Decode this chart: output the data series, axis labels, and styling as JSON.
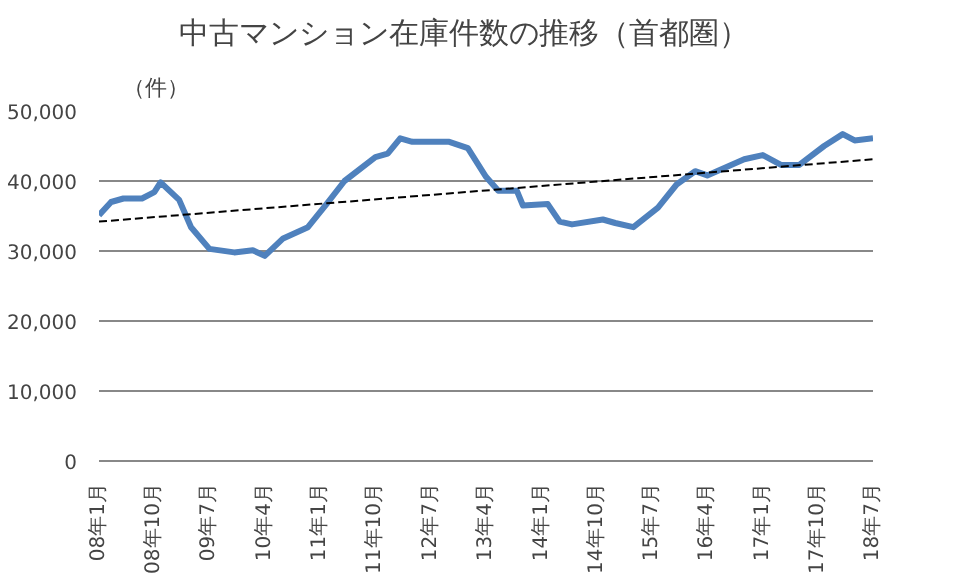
{
  "chart_data": {
    "type": "line",
    "title": "中古マンション在庫件数の推移（首都圏）",
    "ylabel": "（件）",
    "series": [
      {
        "color": "#4f81bd",
        "line_style": "solid",
        "x": [
          "2008-01",
          "2008-03",
          "2008-05",
          "2008-08",
          "2008-10",
          "2008-11",
          "2009-02",
          "2009-04",
          "2009-07",
          "2009-11",
          "2010-02",
          "2010-04",
          "2010-07",
          "2010-11",
          "2011-02",
          "2011-05",
          "2011-10",
          "2011-12",
          "2012-02",
          "2012-04",
          "2012-10",
          "2013-01",
          "2013-04",
          "2013-06",
          "2013-09",
          "2013-10",
          "2014-02",
          "2014-04",
          "2014-06",
          "2014-11",
          "2015-01",
          "2015-04",
          "2015-08",
          "2015-11",
          "2016-02",
          "2016-04",
          "2016-10",
          "2017-01",
          "2017-04",
          "2017-07",
          "2017-11",
          "2018-02",
          "2018-04",
          "2018-07"
        ],
        "values": [
          35100,
          37000,
          37500,
          37500,
          38400,
          39800,
          37300,
          33400,
          30300,
          29800,
          30100,
          29300,
          31800,
          33400,
          36700,
          40000,
          43400,
          43900,
          46100,
          45600,
          45600,
          44700,
          40600,
          38600,
          38600,
          36500,
          36700,
          34200,
          33800,
          34500,
          34000,
          33400,
          36200,
          39500,
          41400,
          40800,
          43100,
          43700,
          42300,
          42300,
          45000,
          46700,
          45800,
          46100
        ]
      },
      {
        "type": "line",
        "color": "#000000",
        "line_style": "dashed",
        "x": [
          "2008-01",
          "2018-07"
        ],
        "values": [
          34200,
          43100
        ]
      }
    ],
    "xlim": [
      "2008-01",
      "2018-07"
    ],
    "xticks": [
      {
        "value": "2008-01",
        "label": "08年1月"
      },
      {
        "value": "2008-10",
        "label": "08年10月"
      },
      {
        "value": "2009-07",
        "label": "09年7月"
      },
      {
        "value": "2010-04",
        "label": "10年4月"
      },
      {
        "value": "2011-01",
        "label": "11年1月"
      },
      {
        "value": "2011-10",
        "label": "11年10月"
      },
      {
        "value": "2012-07",
        "label": "12年7月"
      },
      {
        "value": "2013-04",
        "label": "13年4月"
      },
      {
        "value": "2014-01",
        "label": "14年1月"
      },
      {
        "value": "2014-10",
        "label": "14年10月"
      },
      {
        "value": "2015-07",
        "label": "15年7月"
      },
      {
        "value": "2016-04",
        "label": "16年4月"
      },
      {
        "value": "2017-01",
        "label": "17年1月"
      },
      {
        "value": "2017-10",
        "label": "17年10月"
      },
      {
        "value": "2018-07",
        "label": "18年7月"
      }
    ],
    "ylim": [
      0,
      50000
    ],
    "yticks": [
      {
        "value": 0,
        "label": "0"
      },
      {
        "value": 10000,
        "label": "10,000"
      },
      {
        "value": 20000,
        "label": "20,000"
      },
      {
        "value": 30000,
        "label": "30,000"
      },
      {
        "value": 40000,
        "label": "40,000"
      },
      {
        "value": 50000,
        "label": "50,000"
      }
    ],
    "grid": "y",
    "marker": "none"
  }
}
